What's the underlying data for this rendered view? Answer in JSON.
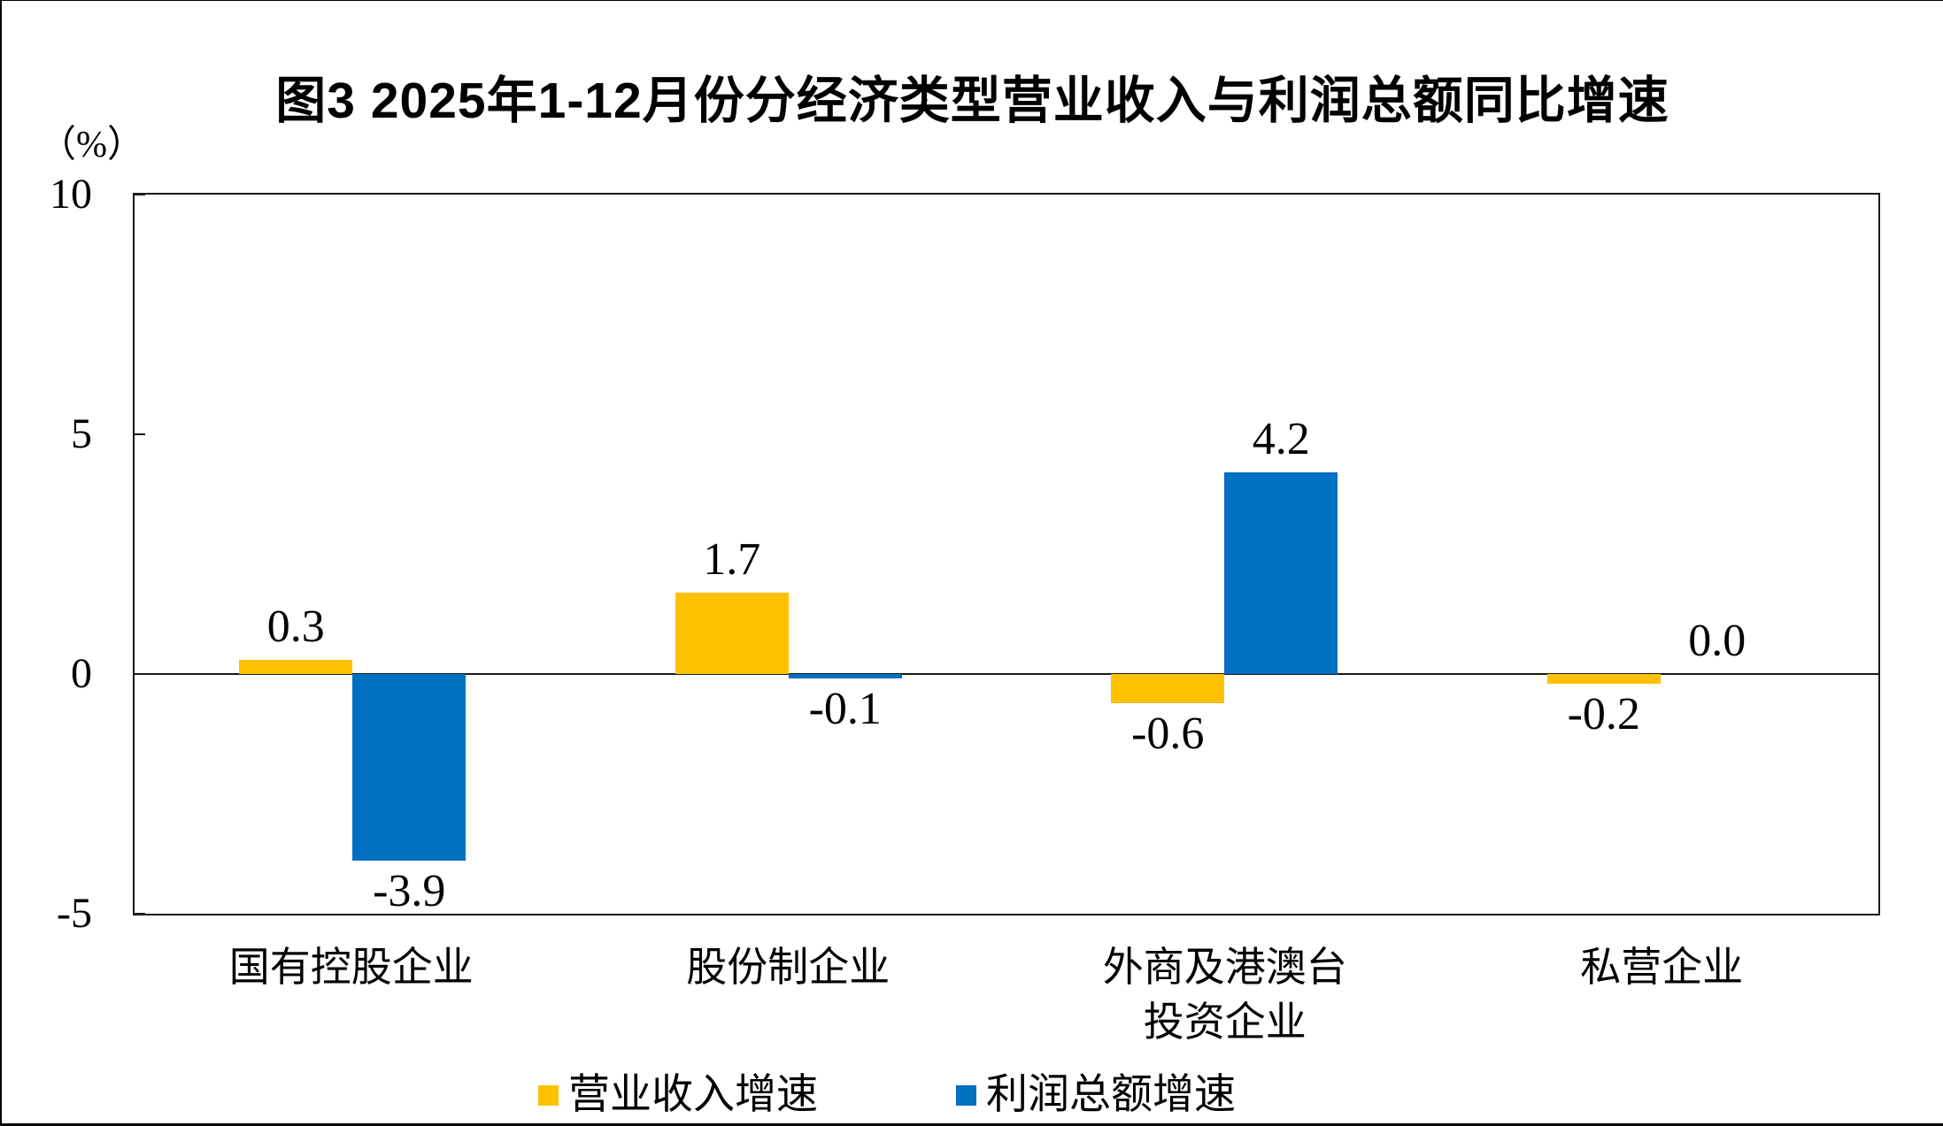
{
  "chart_data": {
    "type": "bar",
    "title": "图3 2025年1-12月份分经济类型营业收入与利润总额同比增速",
    "unit_label": "（%）",
    "categories": [
      "国有控股企业",
      "股份制企业",
      "外商及港澳台\n投资企业",
      "私营企业"
    ],
    "series": [
      {
        "name": "营业收入增速",
        "color": "#FFC000",
        "values": [
          0.3,
          1.7,
          -0.6,
          -0.2
        ]
      },
      {
        "name": "利润总额增速",
        "color": "#0070C0",
        "values": [
          -3.9,
          -0.1,
          4.2,
          0.0
        ]
      }
    ],
    "ylim": [
      -5,
      10
    ],
    "yticks": [
      10,
      5,
      0,
      -5
    ],
    "value_decimals": 1,
    "grid": false,
    "legend_position": "bottom",
    "axis_color": "#1a1a1a",
    "background_color": "#ffffff"
  }
}
